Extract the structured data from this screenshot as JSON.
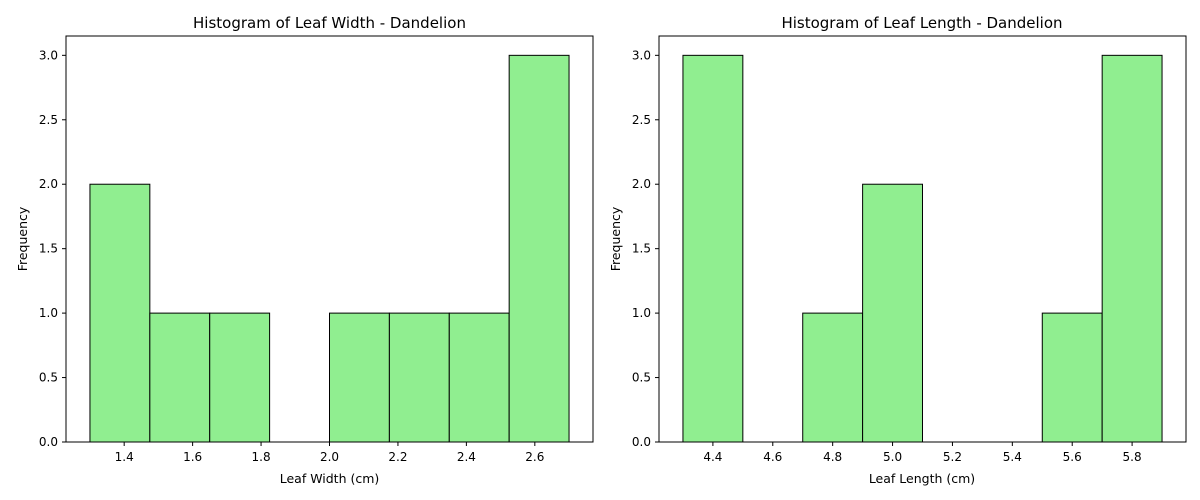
{
  "chart_data": [
    {
      "type": "bar",
      "title": "Histogram of Leaf Width - Dandelion",
      "xlabel": "Leaf Width (cm)",
      "ylabel": "Frequency",
      "bin_edges": [
        1.3,
        1.475,
        1.65,
        1.825,
        2.0,
        2.175,
        2.35,
        2.525,
        2.7
      ],
      "values": [
        2,
        1,
        1,
        0,
        1,
        1,
        1,
        3
      ],
      "xlim": [
        1.23,
        2.77
      ],
      "ylim": [
        0,
        3.15
      ],
      "xticks": [
        1.4,
        1.6,
        1.8,
        2.0,
        2.2,
        2.4,
        2.6
      ],
      "xtick_labels": [
        "1.4",
        "1.6",
        "1.8",
        "2.0",
        "2.2",
        "2.4",
        "2.6"
      ],
      "yticks": [
        0,
        0.5,
        1,
        1.5,
        2,
        2.5,
        3
      ],
      "ytick_labels": [
        "0.0",
        "0.5",
        "1.0",
        "1.5",
        "2.0",
        "2.5",
        "3.0"
      ],
      "bar_color": "#90ee90",
      "edge_color": "#000000",
      "grid": false
    },
    {
      "type": "bar",
      "title": "Histogram of Leaf Length - Dandelion",
      "xlabel": "Leaf Length (cm)",
      "ylabel": "Frequency",
      "bin_edges": [
        4.3,
        4.5,
        4.7,
        4.9,
        5.1,
        5.3,
        5.5,
        5.7,
        5.9
      ],
      "values": [
        3,
        0,
        1,
        2,
        0,
        0,
        1,
        3
      ],
      "xlim": [
        4.22,
        5.98
      ],
      "ylim": [
        0,
        3.15
      ],
      "xticks": [
        4.4,
        4.6,
        4.8,
        5.0,
        5.2,
        5.4,
        5.6,
        5.8
      ],
      "xtick_labels": [
        "4.4",
        "4.6",
        "4.8",
        "5.0",
        "5.2",
        "5.4",
        "5.6",
        "5.8"
      ],
      "yticks": [
        0,
        0.5,
        1,
        1.5,
        2,
        2.5,
        3
      ],
      "ytick_labels": [
        "0.0",
        "0.5",
        "1.0",
        "1.5",
        "2.0",
        "2.5",
        "3.0"
      ],
      "bar_color": "#90ee90",
      "edge_color": "#000000",
      "grid": false
    }
  ]
}
